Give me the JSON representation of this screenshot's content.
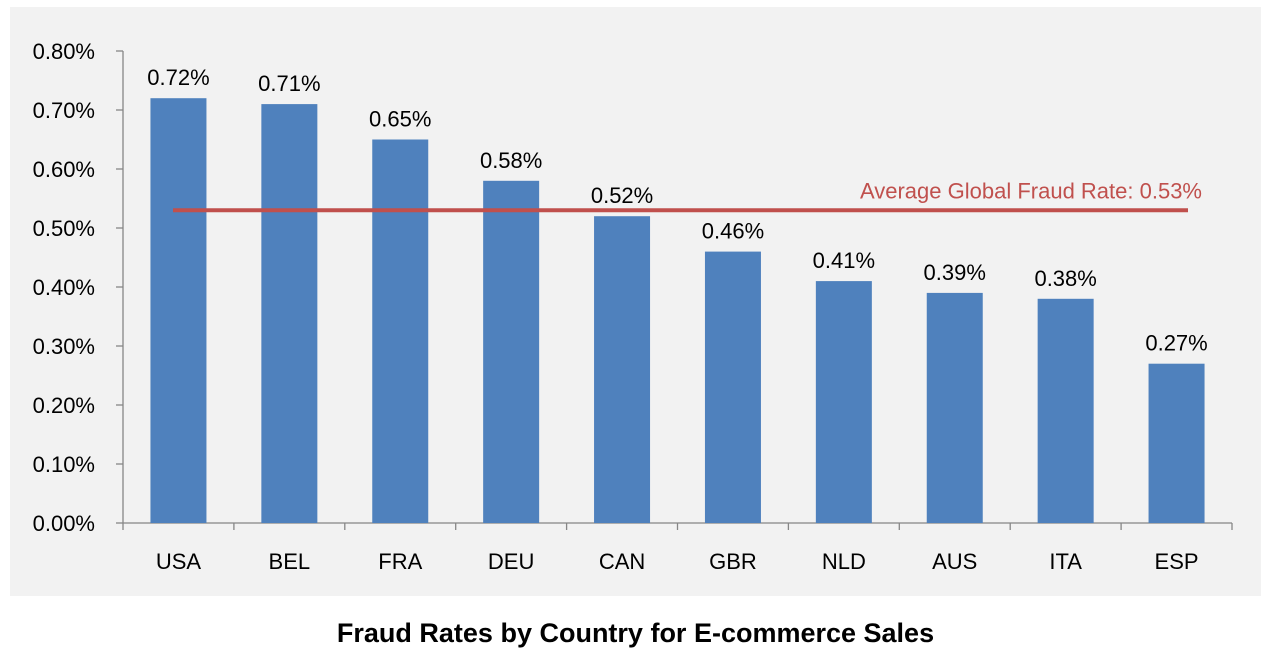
{
  "caption": "Fraud Rates by Country for E-commerce Sales",
  "chart_data": {
    "type": "bar",
    "title": "",
    "xlabel": "",
    "ylabel": "",
    "categories": [
      "USA",
      "BEL",
      "FRA",
      "DEU",
      "CAN",
      "GBR",
      "NLD",
      "AUS",
      "ITA",
      "ESP"
    ],
    "values": [
      0.72,
      0.71,
      0.65,
      0.58,
      0.52,
      0.46,
      0.41,
      0.39,
      0.38,
      0.27
    ],
    "data_labels": [
      "0.72%",
      "0.71%",
      "0.65%",
      "0.58%",
      "0.52%",
      "0.46%",
      "0.41%",
      "0.39%",
      "0.38%",
      "0.27%"
    ],
    "value_unit": "%",
    "ylim": [
      0,
      0.8
    ],
    "yticks": [
      0,
      0.1,
      0.2,
      0.3,
      0.4,
      0.5,
      0.6,
      0.7,
      0.8
    ],
    "ytick_labels": [
      "0.00%",
      "0.10%",
      "0.20%",
      "0.30%",
      "0.40%",
      "0.50%",
      "0.60%",
      "0.70%",
      "0.80%"
    ],
    "grid": false,
    "legend": "none",
    "bar_color": "#4f81bd",
    "reference_line": {
      "value": 0.53,
      "label": "Average Global Fraud Rate: 0.53%",
      "color": "#c0504d"
    }
  }
}
